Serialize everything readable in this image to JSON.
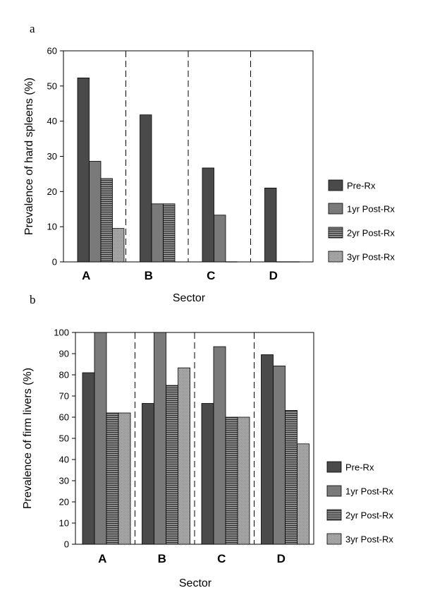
{
  "chart_data": [
    {
      "panel": "a",
      "type": "bar",
      "title": "",
      "xlabel": "Sector",
      "ylabel": "Prevalence of hard spleens (%)",
      "ylim": [
        0,
        60
      ],
      "yticks": [
        0,
        10,
        20,
        30,
        40,
        50,
        60
      ],
      "categories": [
        "A",
        "B",
        "C",
        "D"
      ],
      "grid": false,
      "legend_position": "right",
      "series": [
        {
          "name": "Pre-Rx",
          "values": [
            52.3,
            41.8,
            26.7,
            21.0
          ]
        },
        {
          "name": "1yr Post-Rx",
          "values": [
            28.6,
            16.5,
            13.3,
            0
          ]
        },
        {
          "name": "2yr Post-Rx",
          "values": [
            23.7,
            16.5,
            0,
            0
          ]
        },
        {
          "name": "3yr Post-Rx",
          "values": [
            9.5,
            null,
            null,
            null
          ]
        }
      ]
    },
    {
      "panel": "b",
      "type": "bar",
      "title": "",
      "xlabel": "Sector",
      "ylabel": "Prevalence of firm livers (%)",
      "ylim": [
        0,
        100
      ],
      "yticks": [
        0,
        10,
        20,
        30,
        40,
        50,
        60,
        70,
        80,
        90,
        100
      ],
      "categories": [
        "A",
        "B",
        "C",
        "D"
      ],
      "grid": false,
      "legend_position": "right",
      "series": [
        {
          "name": "Pre-Rx",
          "values": [
            81,
            66.5,
            66.5,
            89.5
          ]
        },
        {
          "name": "1yr Post-Rx",
          "values": [
            100,
            100,
            93.3,
            84.2
          ]
        },
        {
          "name": "2yr Post-Rx",
          "values": [
            62,
            75,
            60,
            63.2
          ]
        },
        {
          "name": "3yr Post-Rx",
          "values": [
            62,
            83.3,
            60,
            47.4
          ]
        }
      ]
    }
  ]
}
